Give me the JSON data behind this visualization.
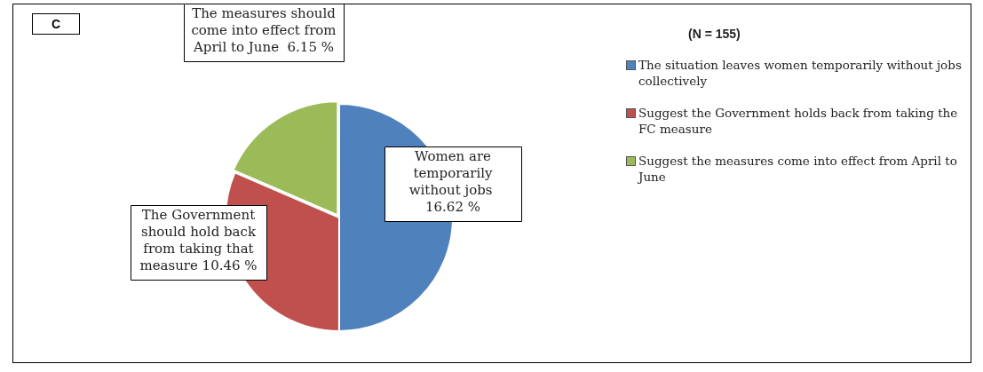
{
  "chart_data": {
    "type": "pie",
    "legend_title": "(N  = 155)",
    "annotations": [
      "C"
    ],
    "legend": "right",
    "categories": [
      "The situation leaves women temporarily without jobs collectively",
      "Suggest the Government holds back from taking the FC measure",
      "Suggest the measures come into effect from April to June"
    ],
    "values": [
      16.62,
      10.46,
      6.15
    ],
    "colors": [
      "#4f81bd",
      "#c0504d",
      "#9bbb59"
    ],
    "value_labels": [
      "Women are temporarily without jobs  16.62 %",
      "The Government should hold back from taking that measure 10.46 %",
      "The measures should come into effect from April to June  6.15 %"
    ]
  }
}
